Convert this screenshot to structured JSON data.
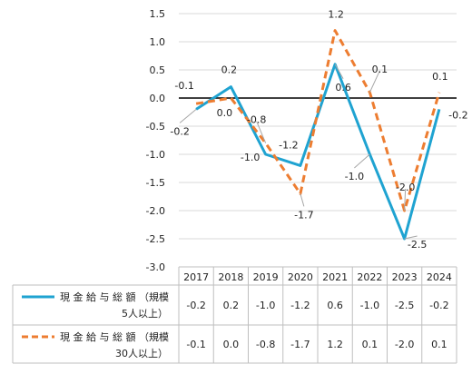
{
  "chart_data": {
    "type": "line",
    "categories": [
      "2017",
      "2018",
      "2019",
      "2020",
      "2021",
      "2022",
      "2023",
      "2024"
    ],
    "series": [
      {
        "name": "現金給与総額（規模5人以上）",
        "name_lines": [
          "現 金 給 与 総 額 （規模",
          "5人以上）"
        ],
        "values": [
          -0.2,
          0.2,
          -1.0,
          -1.2,
          0.6,
          -1.0,
          -2.5,
          -0.2
        ],
        "labels": [
          "-0.2",
          "0.2",
          "-1.0",
          "-1.2",
          "0.6",
          "-1.0",
          "-2.5",
          "-0.2"
        ],
        "table_labels": [
          "-0.2",
          "0.2",
          "-1.0",
          "-1.2",
          "0.6",
          "-1.0",
          "-2.5",
          "-0.2"
        ],
        "color": "#1fa3d1",
        "dash": "solid"
      },
      {
        "name": "現金給与総額（規模30人以上）",
        "name_lines": [
          "現 金 給 与 総 額 （規模",
          "30人以上）"
        ],
        "values": [
          -0.1,
          0.0,
          -0.8,
          -1.7,
          1.2,
          0.1,
          -2.0,
          0.1
        ],
        "labels": [
          "-0.1",
          "0.0",
          "-0.8",
          "-1.7",
          "1.2",
          "0.1",
          "-2.0",
          "0.1"
        ],
        "table_labels": [
          "-0.1",
          "0.0",
          "-0.8",
          "-1.7",
          "1.2",
          "0.1",
          "-2.0",
          "0.1"
        ],
        "color": "#ed7d31",
        "dash": "dashed"
      }
    ],
    "y_tick_labels": [
      "1.5",
      "1.0",
      "0.5",
      "0.0",
      "-0.5",
      "-1.0",
      "-1.5",
      "-2.0",
      "-2.5",
      "-3.0"
    ],
    "ylim": [
      -3.0,
      1.5
    ],
    "grid": true,
    "legend": "data-table",
    "title": "",
    "xlabel": "",
    "ylabel": ""
  }
}
